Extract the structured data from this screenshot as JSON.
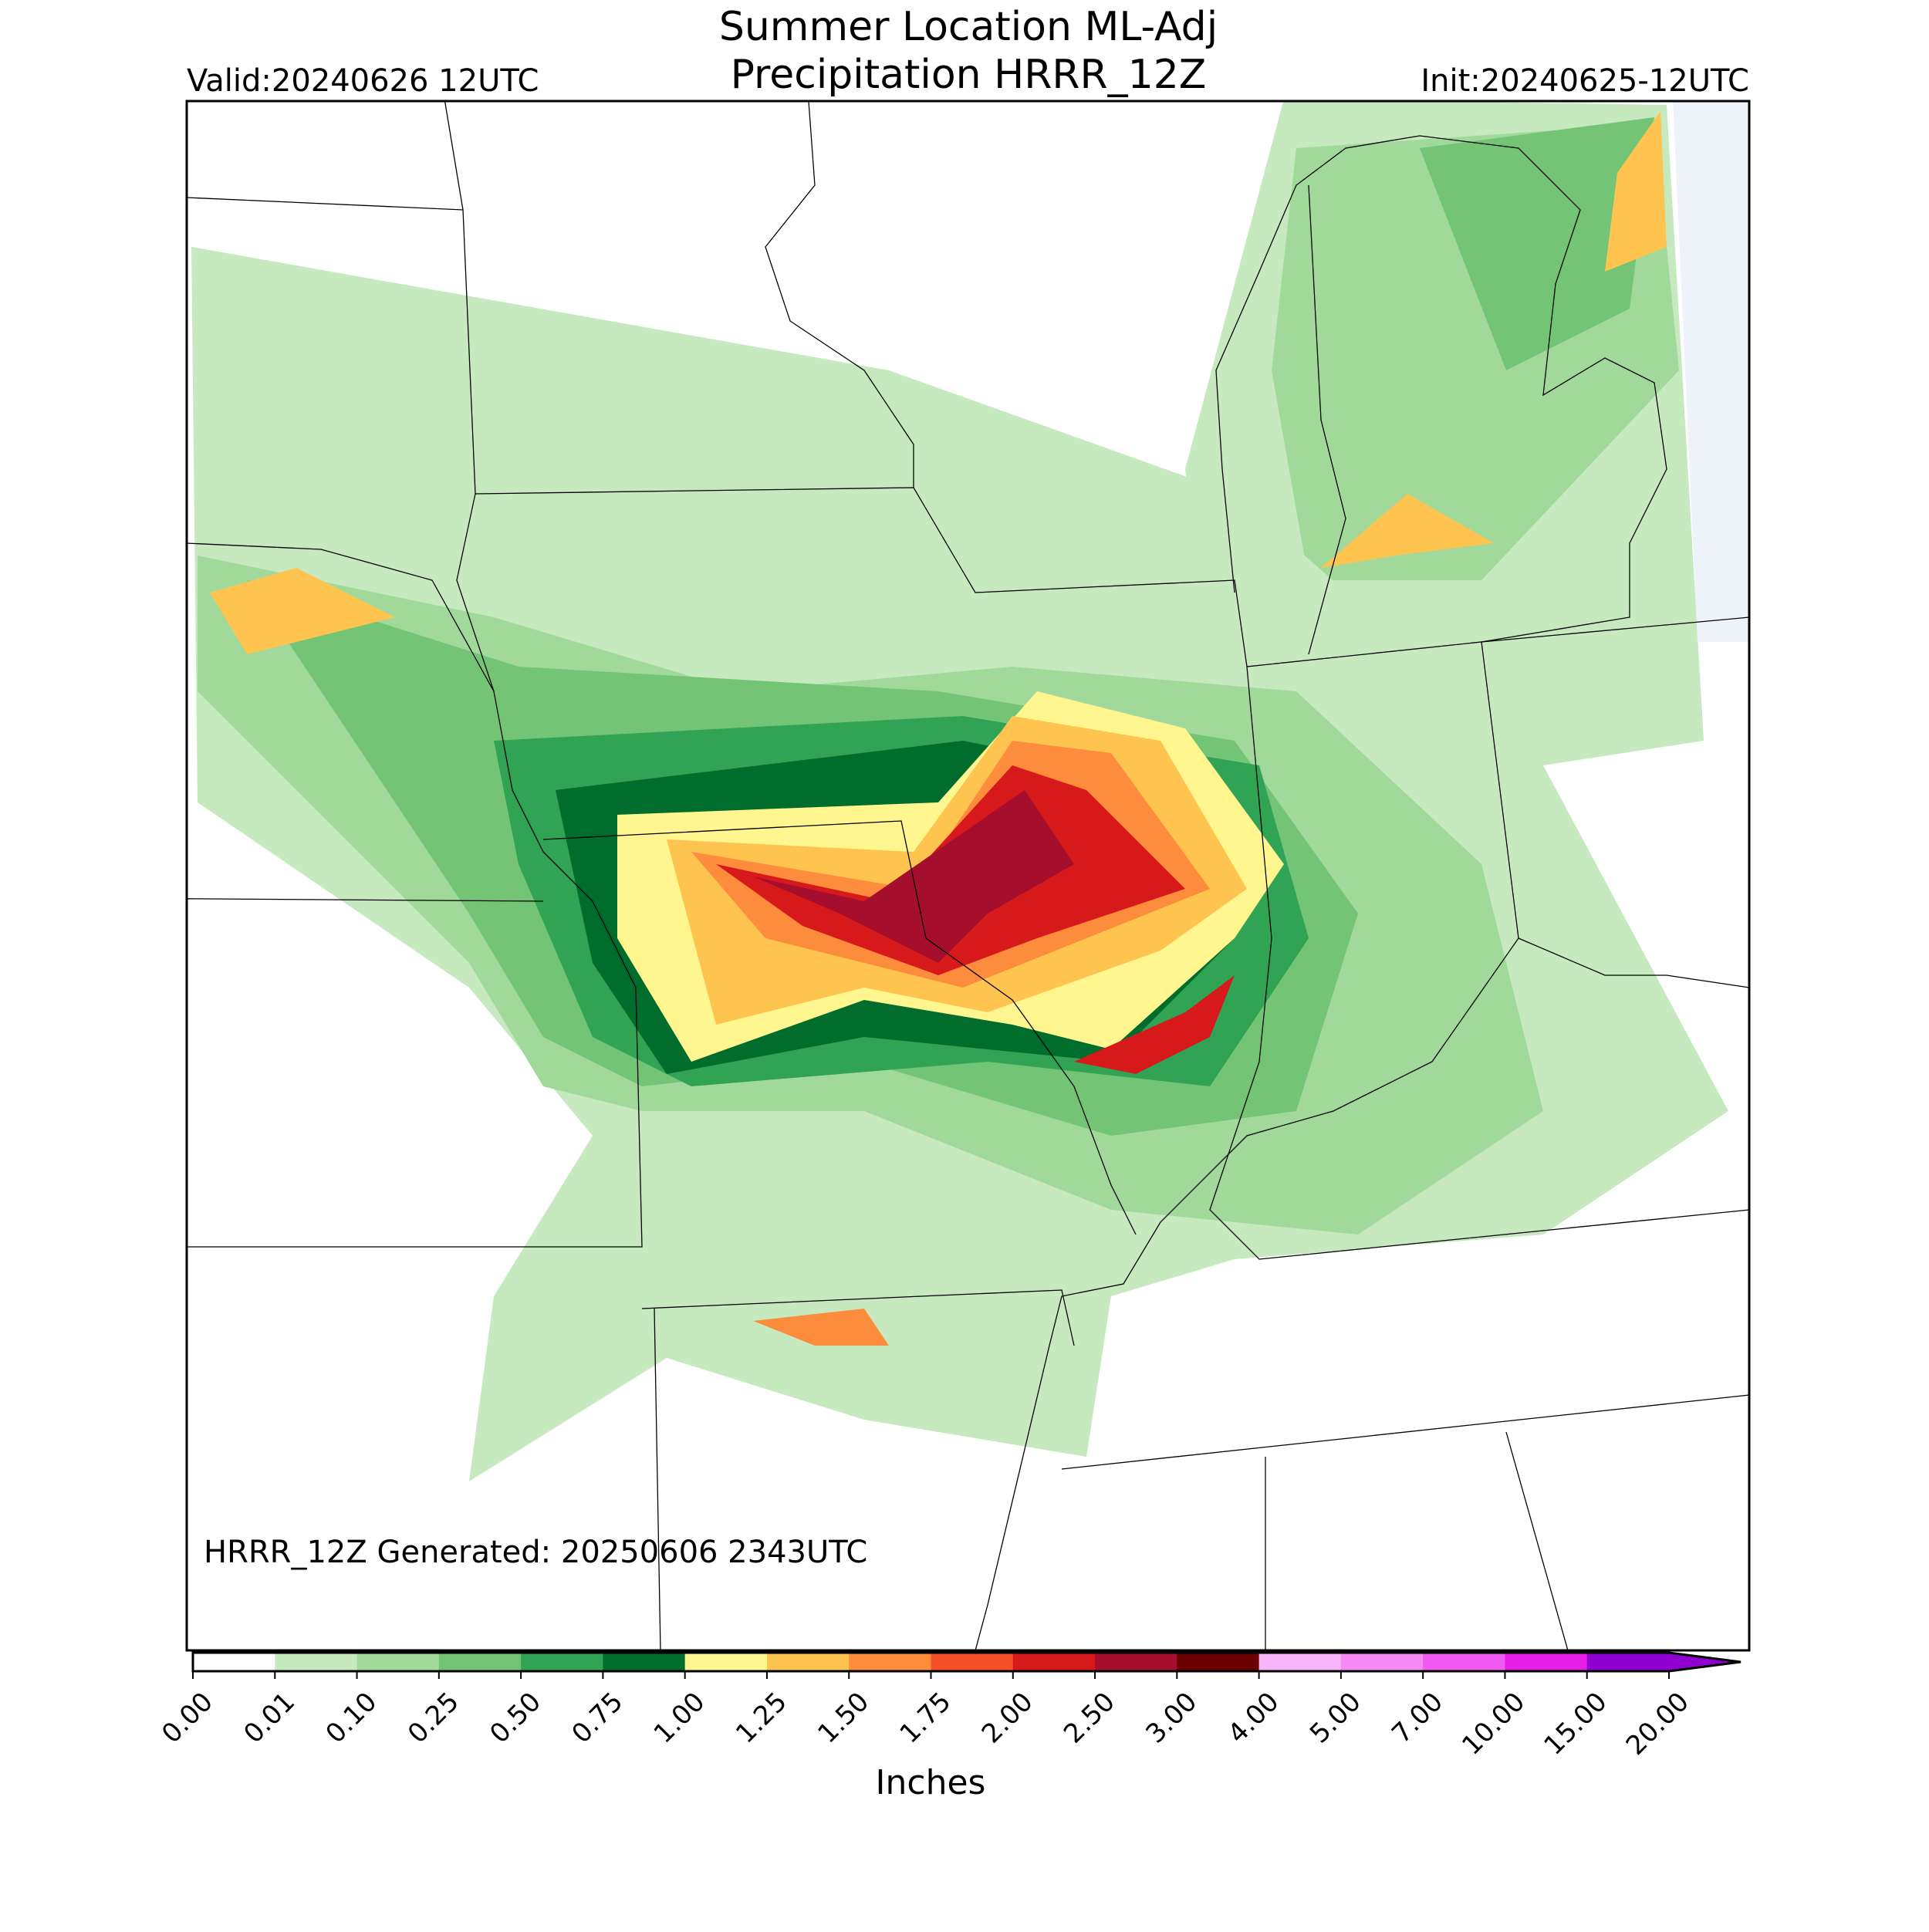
{
  "header": {
    "title_line1": "Summer Location ML-Adj",
    "title_line2": "Precipitation HRRR_12Z",
    "valid": "Valid:20240626 12UTC",
    "init": "Init:20240625-12UTC"
  },
  "map": {
    "annotation": "HRRR_12Z Generated: 20250606 2343UTC"
  },
  "colorbar": {
    "label": "Inches",
    "ticks": [
      {
        "value": 0,
        "label": "0.00"
      },
      {
        "value": 0.01,
        "label": "0.01"
      },
      {
        "value": 0.1,
        "label": "0.10"
      },
      {
        "value": 0.25,
        "label": "0.25"
      },
      {
        "value": 0.5,
        "label": "0.50"
      },
      {
        "value": 0.75,
        "label": "0.75"
      },
      {
        "value": 1,
        "label": "1.00"
      },
      {
        "value": 1.25,
        "label": "1.25"
      },
      {
        "value": 1.5,
        "label": "1.50"
      },
      {
        "value": 1.75,
        "label": "1.75"
      },
      {
        "value": 2,
        "label": "2.00"
      },
      {
        "value": 2.5,
        "label": "2.50"
      },
      {
        "value": 3,
        "label": "3.00"
      },
      {
        "value": 4,
        "label": "4.00"
      },
      {
        "value": 5,
        "label": "5.00"
      },
      {
        "value": 7,
        "label": "7.00"
      },
      {
        "value": 10,
        "label": "10.00"
      },
      {
        "value": 15,
        "label": "15.00"
      },
      {
        "value": 20,
        "label": "20.00"
      }
    ],
    "colors": [
      "#ffffff",
      "#c7e9c0",
      "#a1d99b",
      "#74c476",
      "#31a354",
      "#006d2c",
      "#fff68f",
      "#fec44f",
      "#fd8d3c",
      "#f4502a",
      "#d7191c",
      "#a50f2d",
      "#6b0000",
      "#f8b4f8",
      "#f58af5",
      "#f05af0",
      "#e61ee6",
      "#9000d0"
    ]
  }
}
